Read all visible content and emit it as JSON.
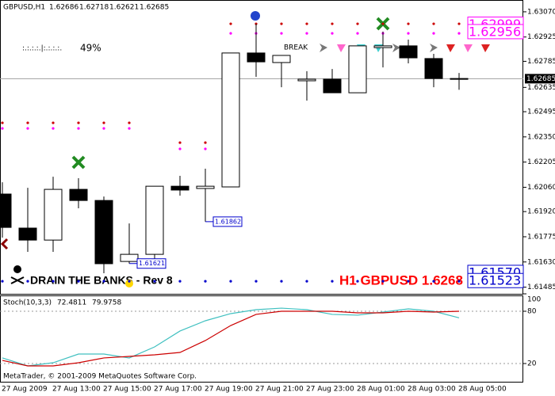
{
  "chart_data": [
    {
      "type": "candlestick",
      "title": "GBPUSD,H1",
      "categories": [
        "27 Aug 2009",
        null,
        "27 Aug 13:00",
        null,
        "27 Aug 15:00",
        null,
        "27 Aug 17:00",
        null,
        "27 Aug 19:00",
        null,
        "27 Aug 21:00",
        null,
        "27 Aug 23:00",
        null,
        "28 Aug 01:00",
        null,
        "28 Aug 03:00",
        null,
        "28 Aug 05:00"
      ],
      "open": [
        1.62021,
        1.61825,
        1.61756,
        1.62048,
        1.61984,
        1.61633,
        1.61674,
        1.62066,
        1.62053,
        1.62062,
        1.62833,
        1.62778,
        1.62673,
        1.62682,
        1.62604,
        1.62864,
        1.62874,
        1.62801,
        1.62686
      ],
      "high": [
        1.62089,
        1.62057,
        1.62121,
        1.62112,
        1.62007,
        1.61852,
        1.62066,
        1.62126,
        1.62167,
        1.62833,
        1.63001,
        1.62819,
        1.62728,
        1.62741,
        1.62874,
        1.62956,
        1.6291,
        1.62828,
        1.62718
      ],
      "low": [
        1.6177,
        1.61688,
        1.61688,
        1.61939,
        1.61565,
        1.61621,
        1.6161,
        1.62012,
        1.61862,
        1.62062,
        1.62696,
        1.62636,
        1.62559,
        1.62604,
        1.62604,
        1.6275,
        1.62773,
        1.62636,
        1.62621
      ],
      "close": [
        1.61829,
        1.61756,
        1.62048,
        1.61984,
        1.6162,
        1.61674,
        1.62066,
        1.62044,
        1.62066,
        1.62833,
        1.62782,
        1.62819,
        1.62682,
        1.62604,
        1.62874,
        1.62874,
        1.62805,
        1.62686,
        1.62685
      ],
      "ylim": [
        1.61442,
        1.63138
      ],
      "yticks": [
        {
          "value": 1.6307,
          "label": "1.63070"
        },
        1.62925,
        1.62785,
        1.62635,
        1.62495,
        {
          "value": 1.6235,
          "label": "1.62350"
        },
        1.62205,
        {
          "value": 1.6206,
          "label": "1.62060"
        },
        {
          "value": 1.6192,
          "label": "1.61920"
        },
        1.61775,
        {
          "value": 1.6163,
          "label": "1.61630"
        },
        1.61485
      ],
      "low_labels": [
        1.61862,
        1.61621
      ],
      "dot_series": [
        {
          "color": "#cc0000",
          "values": [
            1.62431,
            1.62431,
            1.62431,
            1.62431,
            1.62431,
            1.62431,
            null,
            1.62317,
            1.62317,
            1.63001,
            1.63001,
            1.63001,
            1.63001,
            1.63001,
            1.63001,
            1.63001,
            1.63001,
            1.63001,
            1.63001
          ]
        },
        {
          "color": "#ff00ff",
          "values": [
            1.62399,
            1.62399,
            1.62399,
            1.62399,
            1.62399,
            1.62399,
            null,
            1.62281,
            1.62281,
            1.62946,
            1.62946,
            1.62946,
            1.62946,
            1.62946,
            1.62946,
            1.62946,
            1.62946,
            1.62946,
            1.62946
          ]
        },
        {
          "color": "#0000cc",
          "values": [
            1.61519,
            1.61519,
            1.61519,
            1.61519,
            1.61519,
            1.61519,
            1.61519,
            1.61519,
            1.61519,
            1.61519,
            1.61519,
            1.61519,
            1.61519,
            1.61519,
            1.61519,
            1.61519,
            1.61519,
            1.61519,
            1.61519
          ]
        }
      ],
      "right_levels": [
        {
          "value": 1.62999,
          "color": "#ff00ff"
        },
        {
          "value": 1.62956,
          "color": "#ff00ff"
        },
        {
          "value": 1.6157,
          "label": "1.61570",
          "color": "#0000cc"
        },
        {
          "value": 1.61523,
          "color": "#0000cc"
        }
      ],
      "meter_bars": ":.:.:.:.|:.:.:.:.",
      "meter_text": "49%",
      "break_label": "BREAK",
      "brand": "DRAIN THE BANKS - Rev 8",
      "ticker_label": "H1 GBPUSD 1.6268"
    },
    {
      "type": "line",
      "title": "Stoch(10,3,3)",
      "series": [
        {
          "color": "#40c0c0",
          "values": [
            26.4,
            17.3,
            20.9,
            30.9,
            30.9,
            26.4,
            39.1,
            57.3,
            69.1,
            77.3,
            81.8,
            83.6,
            81.8,
            76.4,
            75.5,
            79.1,
            82.7,
            80.0,
            72.4811
          ]
        },
        {
          "color": "#cc0000",
          "values": [
            23.6,
            17.3,
            17.3,
            20.9,
            26.4,
            28.2,
            30.0,
            32.7,
            46.4,
            63.6,
            76.4,
            80.0,
            80.0,
            80.0,
            78.2,
            78.2,
            80.0,
            79.1,
            79.9758
          ]
        }
      ],
      "ylim": [
        0,
        100
      ],
      "yticks": [
        20,
        80,
        100
      ],
      "copyright": "MetaTrader, © 2001-2009 MetaQuotes Software Corp."
    }
  ]
}
